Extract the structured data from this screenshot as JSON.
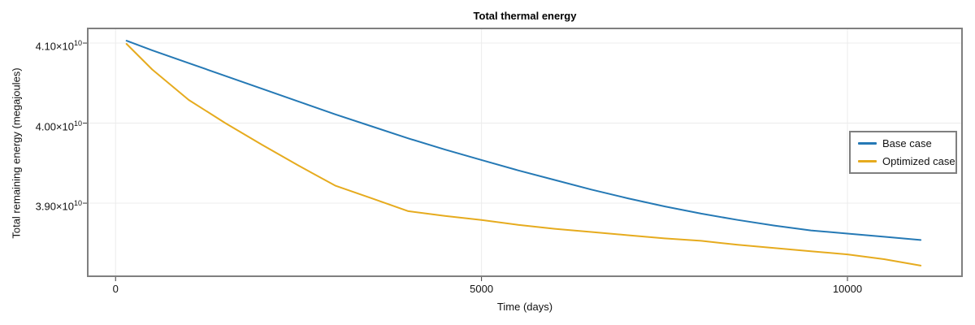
{
  "chart_data": {
    "type": "line",
    "title": "Total thermal energy",
    "xlabel": "Time (days)",
    "ylabel": "Total remaining energy (megajoules)",
    "grid": true,
    "legend_position": "center-right",
    "frame_color": "#7f7f7f",
    "grid_color": "#ececec",
    "tick_color": "#3a3a3a",
    "xlim": [
      -380,
      11565
    ],
    "ylim_e10": [
      3.8087,
      4.1183
    ],
    "x_ticks": [
      {
        "value": 0,
        "label": "0"
      },
      {
        "value": 5000,
        "label": "5000"
      },
      {
        "value": 10000,
        "label": "10000"
      }
    ],
    "y_ticks": [
      {
        "value_e10": 4.1,
        "mantissa": "4.10×10",
        "exponent": "10"
      },
      {
        "value_e10": 4.0,
        "mantissa": "4.00×10",
        "exponent": "10"
      },
      {
        "value_e10": 3.9,
        "mantissa": "3.90×10",
        "exponent": "10"
      }
    ],
    "x": [
      150,
      500,
      1000,
      1500,
      2000,
      2500,
      3000,
      3500,
      4000,
      4500,
      5000,
      5500,
      6000,
      6500,
      7000,
      7500,
      8000,
      8500,
      9000,
      9500,
      10000,
      10500,
      11000
    ],
    "series": [
      {
        "name": "Base case",
        "color": "#2579b5",
        "values_e10": [
          4.103,
          4.091,
          4.075,
          4.059,
          4.043,
          4.027,
          4.011,
          3.996,
          3.981,
          3.967,
          3.954,
          3.941,
          3.929,
          3.917,
          3.906,
          3.896,
          3.887,
          3.879,
          3.872,
          3.866,
          3.862,
          3.858,
          3.854
        ]
      },
      {
        "name": "Optimized case",
        "color": "#e6ab1e",
        "values_e10": [
          4.099,
          4.067,
          4.029,
          4.0,
          3.973,
          3.947,
          3.922,
          3.906,
          3.89,
          3.884,
          3.879,
          3.873,
          3.868,
          3.864,
          3.86,
          3.856,
          3.853,
          3.848,
          3.844,
          3.84,
          3.836,
          3.83,
          3.822
        ]
      }
    ]
  }
}
